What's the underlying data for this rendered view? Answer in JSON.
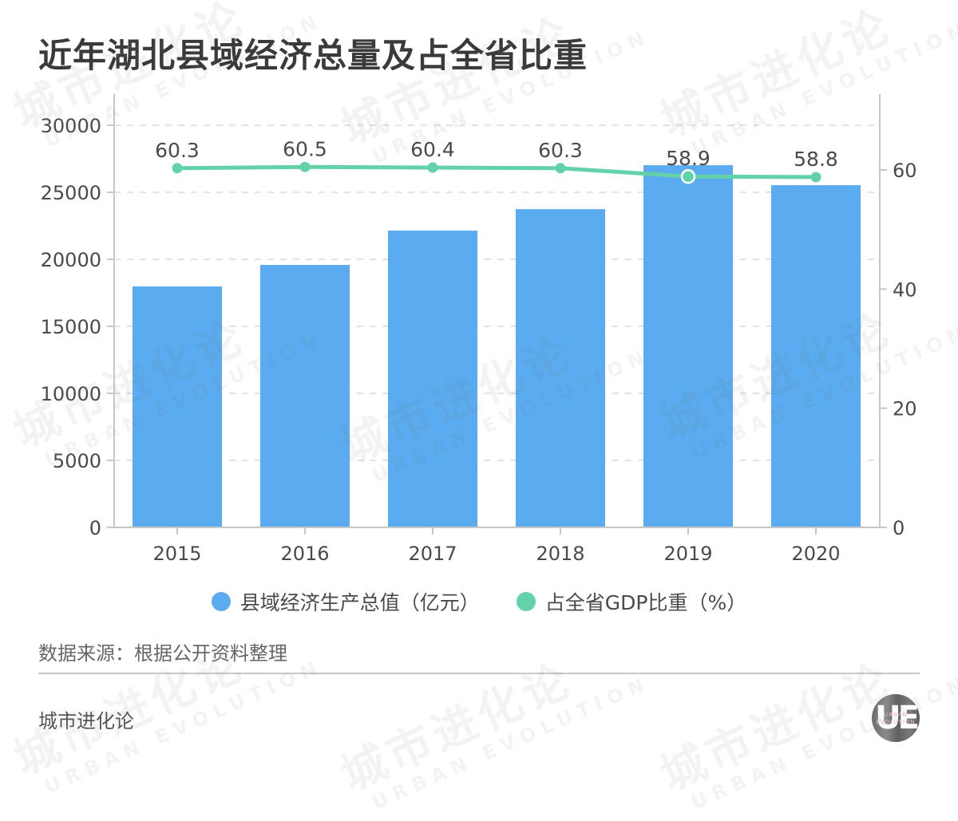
{
  "page": {
    "title": "近年湖北县域经济总量及占全省比重",
    "source": "数据来源：根据公开资料整理",
    "brand": "城市进化论",
    "logo": {
      "mark": "UE",
      "line1": "URBAN",
      "line2": "EVOLUTION"
    },
    "watermark": {
      "cn": "城市进化论",
      "en": "URBAN EVOLUTION"
    }
  },
  "colors": {
    "bar": "#5aabef",
    "line": "#63d2a8",
    "axis": "#c8c8c8",
    "grid": "#e3e3e3",
    "text": "#4a4a4a"
  },
  "legend": [
    {
      "label": "县域经济生产总值（亿元）",
      "color": "#5aabef"
    },
    {
      "label": "占全省GDP比重（%）",
      "color": "#63d2a8"
    }
  ],
  "chart_data": {
    "type": "bar+line",
    "title": "近年湖北县域经济总量及占全省比重",
    "categories": [
      "2015",
      "2016",
      "2017",
      "2018",
      "2019",
      "2020"
    ],
    "series": [
      {
        "name": "县域经济生产总值（亿元）",
        "type": "bar",
        "axis": "left",
        "values": [
          17980,
          19580,
          22140,
          23740,
          27020,
          25530
        ]
      },
      {
        "name": "占全省GDP比重（%）",
        "type": "line",
        "axis": "right",
        "values": [
          60.3,
          60.5,
          60.4,
          60.3,
          58.9,
          58.8
        ],
        "data_labels": [
          "60.3",
          "60.5",
          "60.4",
          "60.3",
          "58.9",
          "58.8"
        ]
      }
    ],
    "left_axis": {
      "ticks": [
        0,
        5000,
        10000,
        15000,
        20000,
        25000,
        30000
      ],
      "range": [
        0,
        30000
      ]
    },
    "right_axis": {
      "ticks": [
        0,
        20,
        40,
        60
      ],
      "range": [
        0,
        67.5
      ]
    },
    "grid": "horizontal dashed",
    "legend_position": "bottom",
    "xlabel": "",
    "ylabel": ""
  }
}
